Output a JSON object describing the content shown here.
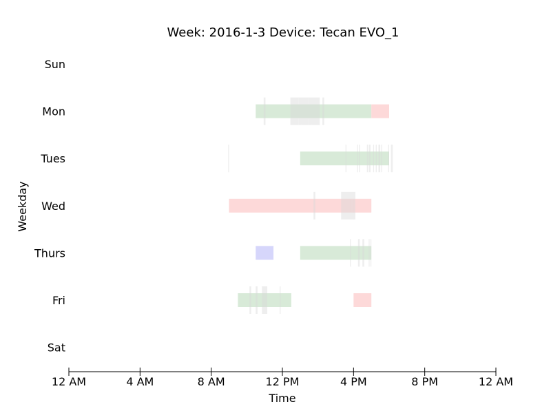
{
  "chart_data": {
    "type": "timeline",
    "title": "Week: 2016-1-3  Device: Tecan EVO_1",
    "xlabel": "Time",
    "ylabel": "Weekday",
    "x_range_hours": [
      0,
      24
    ],
    "x_ticks": [
      {
        "hour": 0,
        "label": "12 AM"
      },
      {
        "hour": 4,
        "label": "4 AM"
      },
      {
        "hour": 8,
        "label": "8 AM"
      },
      {
        "hour": 12,
        "label": "12 PM"
      },
      {
        "hour": 16,
        "label": "4 PM"
      },
      {
        "hour": 20,
        "label": "8 PM"
      },
      {
        "hour": 24,
        "label": "12 AM"
      }
    ],
    "days": [
      "Sun",
      "Mon",
      "Tues",
      "Wed",
      "Thurs",
      "Fri",
      "Sat"
    ],
    "colors": {
      "green": "#d8ead8",
      "red": "#fdd9d9",
      "blue": "#d6d6fb",
      "gray": "#d9d9d9",
      "axis": "#000000"
    },
    "bars": [
      {
        "day": "Mon",
        "start": 10.5,
        "end": 17.0,
        "color": "green"
      },
      {
        "day": "Mon",
        "start": 17.0,
        "end": 18.0,
        "color": "red"
      },
      {
        "day": "Tues",
        "start": 13.0,
        "end": 18.0,
        "color": "green"
      },
      {
        "day": "Wed",
        "start": 9.0,
        "end": 17.0,
        "color": "red"
      },
      {
        "day": "Thurs",
        "start": 10.5,
        "end": 11.5,
        "color": "blue"
      },
      {
        "day": "Thurs",
        "start": 13.0,
        "end": 17.0,
        "color": "green"
      },
      {
        "day": "Fri",
        "start": 9.5,
        "end": 12.5,
        "color": "green"
      },
      {
        "day": "Fri",
        "start": 16.0,
        "end": 17.0,
        "color": "red"
      }
    ],
    "markers": [
      {
        "day": "Mon",
        "start": 10.95,
        "end": 11.05
      },
      {
        "day": "Mon",
        "start": 12.45,
        "end": 12.6
      },
      {
        "day": "Mon",
        "start": 12.6,
        "end": 12.75
      },
      {
        "day": "Mon",
        "start": 12.75,
        "end": 12.9
      },
      {
        "day": "Mon",
        "start": 12.9,
        "end": 13.05
      },
      {
        "day": "Mon",
        "start": 13.05,
        "end": 13.2
      },
      {
        "day": "Mon",
        "start": 13.2,
        "end": 13.35
      },
      {
        "day": "Mon",
        "start": 13.35,
        "end": 13.5
      },
      {
        "day": "Mon",
        "start": 13.5,
        "end": 13.65
      },
      {
        "day": "Mon",
        "start": 13.65,
        "end": 13.8
      },
      {
        "day": "Mon",
        "start": 13.8,
        "end": 13.95
      },
      {
        "day": "Mon",
        "start": 13.95,
        "end": 14.1
      },
      {
        "day": "Mon",
        "start": 14.25,
        "end": 14.35
      },
      {
        "day": "Tues",
        "start": 8.95,
        "end": 9.0
      },
      {
        "day": "Tues",
        "start": 15.55,
        "end": 15.6
      },
      {
        "day": "Tues",
        "start": 16.2,
        "end": 16.25
      },
      {
        "day": "Tues",
        "start": 16.3,
        "end": 16.35
      },
      {
        "day": "Tues",
        "start": 16.75,
        "end": 16.8
      },
      {
        "day": "Tues",
        "start": 16.85,
        "end": 16.95
      },
      {
        "day": "Tues",
        "start": 17.1,
        "end": 17.15
      },
      {
        "day": "Tues",
        "start": 17.25,
        "end": 17.3
      },
      {
        "day": "Tues",
        "start": 17.4,
        "end": 17.5
      },
      {
        "day": "Tues",
        "start": 17.55,
        "end": 17.6
      },
      {
        "day": "Tues",
        "start": 17.95,
        "end": 18.0
      },
      {
        "day": "Tues",
        "start": 18.1,
        "end": 18.2
      },
      {
        "day": "Wed",
        "start": 13.75,
        "end": 13.85
      },
      {
        "day": "Wed",
        "start": 15.3,
        "end": 15.45
      },
      {
        "day": "Wed",
        "start": 15.45,
        "end": 15.6
      },
      {
        "day": "Wed",
        "start": 15.6,
        "end": 15.8
      },
      {
        "day": "Wed",
        "start": 15.8,
        "end": 16.0
      },
      {
        "day": "Wed",
        "start": 16.0,
        "end": 16.1
      },
      {
        "day": "Thurs",
        "start": 15.8,
        "end": 15.85
      },
      {
        "day": "Thurs",
        "start": 16.25,
        "end": 16.35
      },
      {
        "day": "Thurs",
        "start": 16.5,
        "end": 16.6
      },
      {
        "day": "Thurs",
        "start": 16.85,
        "end": 16.9
      },
      {
        "day": "Thurs",
        "start": 16.95,
        "end": 17.0
      },
      {
        "day": "Fri",
        "start": 10.15,
        "end": 10.25
      },
      {
        "day": "Fri",
        "start": 10.5,
        "end": 10.6
      },
      {
        "day": "Fri",
        "start": 10.85,
        "end": 10.95
      },
      {
        "day": "Fri",
        "start": 10.95,
        "end": 11.15
      },
      {
        "day": "Fri",
        "start": 11.85,
        "end": 11.9
      }
    ]
  }
}
